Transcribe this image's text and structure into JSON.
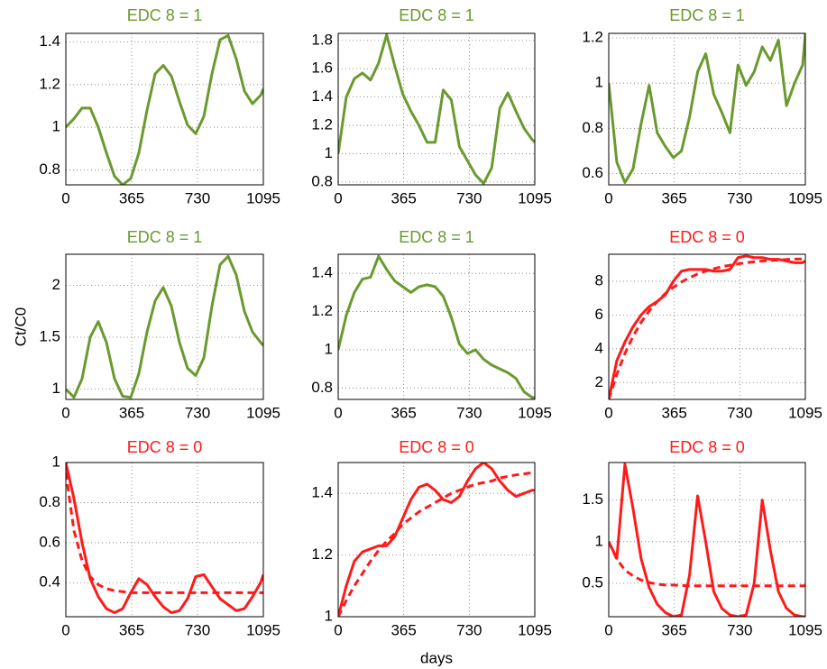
{
  "chart_data": [
    {
      "type": "line",
      "title": "EDC 8 = 1",
      "title_color": "#6a9a2e",
      "x": [
        0,
        45,
        90,
        135,
        180,
        225,
        270,
        315,
        360,
        405,
        450,
        495,
        540,
        585,
        630,
        675,
        720,
        765,
        810,
        855,
        900,
        945,
        990,
        1035,
        1080,
        1095
      ],
      "series": [
        {
          "color": "#6a9a2e",
          "style": "solid",
          "values": [
            1.0,
            1.04,
            1.09,
            1.09,
            1.0,
            0.88,
            0.77,
            0.73,
            0.76,
            0.88,
            1.08,
            1.25,
            1.29,
            1.24,
            1.12,
            1.01,
            0.97,
            1.05,
            1.25,
            1.41,
            1.43,
            1.32,
            1.17,
            1.11,
            1.15,
            1.18
          ]
        }
      ],
      "xlim": [
        0,
        1095
      ],
      "xticks": [
        0,
        365,
        730,
        1095
      ],
      "ylim": [
        0.73,
        1.44
      ],
      "yticks": [
        0.8,
        1,
        1.2,
        1.4
      ],
      "grid": true
    },
    {
      "type": "line",
      "title": "EDC 8 = 1",
      "title_color": "#6a9a2e",
      "x": [
        0,
        45,
        90,
        135,
        180,
        225,
        270,
        315,
        360,
        405,
        450,
        495,
        540,
        585,
        630,
        675,
        720,
        765,
        810,
        855,
        900,
        945,
        990,
        1035,
        1080,
        1095
      ],
      "series": [
        {
          "color": "#6a9a2e",
          "style": "solid",
          "values": [
            1.0,
            1.4,
            1.53,
            1.57,
            1.52,
            1.64,
            1.84,
            1.62,
            1.42,
            1.3,
            1.2,
            1.08,
            1.08,
            1.45,
            1.38,
            1.05,
            0.95,
            0.85,
            0.79,
            0.9,
            1.32,
            1.43,
            1.3,
            1.18,
            1.1,
            1.08
          ]
        }
      ],
      "xlim": [
        0,
        1095
      ],
      "xticks": [
        0,
        365,
        730,
        1095
      ],
      "ylim": [
        0.78,
        1.85
      ],
      "yticks": [
        0.8,
        1,
        1.2,
        1.4,
        1.6,
        1.8
      ],
      "grid": true
    },
    {
      "type": "line",
      "title": "EDC 8 = 1",
      "title_color": "#6a9a2e",
      "x": [
        0,
        45,
        90,
        135,
        180,
        225,
        270,
        315,
        360,
        405,
        450,
        495,
        540,
        585,
        630,
        675,
        720,
        765,
        810,
        855,
        900,
        945,
        990,
        1035,
        1080,
        1095
      ],
      "series": [
        {
          "color": "#6a9a2e",
          "style": "solid",
          "values": [
            1.0,
            0.65,
            0.56,
            0.62,
            0.82,
            0.99,
            0.78,
            0.72,
            0.67,
            0.7,
            0.85,
            1.05,
            1.13,
            0.95,
            0.87,
            0.78,
            1.08,
            0.99,
            1.05,
            1.16,
            1.1,
            1.19,
            0.9,
            1.0,
            1.08,
            1.22
          ]
        }
      ],
      "xlim": [
        0,
        1095
      ],
      "xticks": [
        0,
        365,
        730,
        1095
      ],
      "ylim": [
        0.55,
        1.22
      ],
      "yticks": [
        0.6,
        0.8,
        1,
        1.2
      ],
      "grid": true
    },
    {
      "type": "line",
      "title": "EDC 8 = 1",
      "title_color": "#6a9a2e",
      "ylabel": "Ct/C0",
      "x": [
        0,
        45,
        90,
        135,
        180,
        225,
        270,
        315,
        360,
        405,
        450,
        495,
        540,
        585,
        630,
        675,
        720,
        765,
        810,
        855,
        900,
        945,
        990,
        1035,
        1080,
        1095
      ],
      "series": [
        {
          "color": "#6a9a2e",
          "style": "solid",
          "values": [
            1.0,
            0.92,
            1.1,
            1.5,
            1.65,
            1.45,
            1.1,
            0.93,
            0.92,
            1.15,
            1.55,
            1.85,
            1.98,
            1.8,
            1.45,
            1.2,
            1.13,
            1.3,
            1.8,
            2.2,
            2.28,
            2.1,
            1.75,
            1.55,
            1.45,
            1.42
          ]
        }
      ],
      "xlim": [
        0,
        1095
      ],
      "xticks": [
        0,
        365,
        730,
        1095
      ],
      "ylim": [
        0.9,
        2.3
      ],
      "yticks": [
        1,
        1.5,
        2
      ],
      "grid": true
    },
    {
      "type": "line",
      "title": "EDC 8 = 1",
      "title_color": "#6a9a2e",
      "x": [
        0,
        45,
        90,
        135,
        180,
        225,
        270,
        315,
        360,
        405,
        450,
        495,
        540,
        585,
        630,
        675,
        720,
        765,
        810,
        855,
        900,
        945,
        990,
        1035,
        1080,
        1095
      ],
      "series": [
        {
          "color": "#6a9a2e",
          "style": "solid",
          "values": [
            1.0,
            1.18,
            1.3,
            1.37,
            1.38,
            1.49,
            1.42,
            1.36,
            1.33,
            1.3,
            1.33,
            1.34,
            1.33,
            1.28,
            1.17,
            1.03,
            0.98,
            1.0,
            0.95,
            0.92,
            0.9,
            0.88,
            0.85,
            0.78,
            0.75,
            0.75
          ]
        }
      ],
      "xlim": [
        0,
        1095
      ],
      "xticks": [
        0,
        365,
        730,
        1095
      ],
      "ylim": [
        0.74,
        1.5
      ],
      "yticks": [
        0.8,
        1,
        1.2,
        1.4
      ],
      "grid": true
    },
    {
      "type": "line",
      "title": "EDC 8 = 0",
      "title_color": "#ff1a1a",
      "x": [
        0,
        45,
        90,
        135,
        180,
        225,
        270,
        315,
        360,
        405,
        450,
        495,
        540,
        585,
        630,
        675,
        720,
        765,
        810,
        855,
        900,
        945,
        990,
        1035,
        1080,
        1095
      ],
      "series": [
        {
          "color": "#ff1a1a",
          "style": "solid",
          "values": [
            1,
            3.3,
            4.4,
            5.3,
            6.0,
            6.5,
            6.8,
            7.2,
            8.0,
            8.6,
            8.7,
            8.7,
            8.7,
            8.6,
            8.6,
            8.7,
            9.4,
            9.5,
            9.4,
            9.4,
            9.3,
            9.3,
            9.2,
            9.1,
            9.1,
            9.2
          ]
        },
        {
          "color": "#ff1a1a",
          "style": "dashed",
          "values": [
            1,
            2.49,
            3.72,
            4.73,
            5.56,
            6.24,
            6.8,
            7.27,
            7.64,
            7.96,
            8.21,
            8.43,
            8.6,
            8.74,
            8.86,
            8.95,
            9.03,
            9.1,
            9.15,
            9.2,
            9.23,
            9.26,
            9.29,
            9.31,
            9.32,
            9.33
          ]
        }
      ],
      "xlim": [
        0,
        1095
      ],
      "xticks": [
        0,
        365,
        730,
        1095
      ],
      "ylim": [
        1,
        9.6
      ],
      "yticks": [
        2,
        4,
        6,
        8
      ],
      "grid": true
    },
    {
      "type": "line",
      "title": "EDC 8 = 0",
      "title_color": "#ff1a1a",
      "x": [
        0,
        45,
        90,
        135,
        180,
        225,
        270,
        315,
        360,
        405,
        450,
        495,
        540,
        585,
        630,
        675,
        720,
        765,
        810,
        855,
        900,
        945,
        990,
        1035,
        1080,
        1095
      ],
      "series": [
        {
          "color": "#ff1a1a",
          "style": "solid",
          "values": [
            1,
            0.82,
            0.6,
            0.42,
            0.33,
            0.27,
            0.25,
            0.27,
            0.35,
            0.42,
            0.39,
            0.33,
            0.28,
            0.25,
            0.26,
            0.32,
            0.43,
            0.44,
            0.38,
            0.32,
            0.29,
            0.26,
            0.27,
            0.33,
            0.4,
            0.44
          ]
        },
        {
          "color": "#ff1a1a",
          "style": "dashed",
          "values": [
            0.95,
            0.66,
            0.51,
            0.43,
            0.39,
            0.37,
            0.36,
            0.355,
            0.35,
            0.35,
            0.35,
            0.35,
            0.35,
            0.35,
            0.35,
            0.35,
            0.35,
            0.35,
            0.35,
            0.35,
            0.35,
            0.35,
            0.35,
            0.35,
            0.35,
            0.35
          ]
        }
      ],
      "xlim": [
        0,
        1095
      ],
      "xticks": [
        0,
        365,
        730,
        1095
      ],
      "ylim": [
        0.23,
        1
      ],
      "yticks": [
        0.4,
        0.6,
        0.8,
        1
      ],
      "grid": true
    },
    {
      "type": "line",
      "title": "EDC 8 = 0",
      "title_color": "#ff1a1a",
      "xlabel": "days",
      "x": [
        0,
        45,
        90,
        135,
        180,
        225,
        270,
        315,
        360,
        405,
        450,
        495,
        540,
        585,
        630,
        675,
        720,
        765,
        810,
        855,
        900,
        945,
        990,
        1035,
        1080,
        1095
      ],
      "series": [
        {
          "color": "#ff1a1a",
          "style": "solid",
          "values": [
            1,
            1.1,
            1.18,
            1.21,
            1.22,
            1.23,
            1.23,
            1.26,
            1.32,
            1.38,
            1.42,
            1.43,
            1.41,
            1.38,
            1.37,
            1.39,
            1.44,
            1.48,
            1.5,
            1.48,
            1.44,
            1.41,
            1.39,
            1.4,
            1.41,
            1.41
          ]
        },
        {
          "color": "#ff1a1a",
          "style": "dashed",
          "values": [
            1,
            1.053,
            1.1,
            1.14,
            1.18,
            1.215,
            1.245,
            1.27,
            1.3,
            1.32,
            1.34,
            1.355,
            1.37,
            1.385,
            1.4,
            1.41,
            1.42,
            1.43,
            1.435,
            1.44,
            1.45,
            1.455,
            1.46,
            1.463,
            1.467,
            1.468
          ]
        }
      ],
      "xlim": [
        0,
        1095
      ],
      "xticks": [
        0,
        365,
        730,
        1095
      ],
      "ylim": [
        1,
        1.5
      ],
      "yticks": [
        1,
        1.2,
        1.4
      ],
      "grid": true
    },
    {
      "type": "line",
      "title": "EDC 8 = 0",
      "title_color": "#ff1a1a",
      "x": [
        0,
        45,
        90,
        135,
        180,
        225,
        270,
        315,
        360,
        405,
        450,
        495,
        540,
        585,
        630,
        675,
        720,
        765,
        810,
        855,
        900,
        945,
        990,
        1035,
        1080,
        1095
      ],
      "series": [
        {
          "color": "#ff1a1a",
          "style": "solid",
          "values": [
            1,
            0.8,
            1.93,
            1.4,
            0.8,
            0.45,
            0.25,
            0.15,
            0.1,
            0.12,
            0.6,
            1.55,
            1.0,
            0.4,
            0.2,
            0.12,
            0.1,
            0.12,
            0.5,
            1.5,
            0.9,
            0.4,
            0.2,
            0.12,
            0.1,
            0.1
          ]
        },
        {
          "color": "#ff1a1a",
          "style": "dashed",
          "values": [
            1,
            0.79,
            0.66,
            0.59,
            0.54,
            0.51,
            0.49,
            0.48,
            0.48,
            0.475,
            0.47,
            0.47,
            0.47,
            0.47,
            0.47,
            0.47,
            0.47,
            0.47,
            0.47,
            0.47,
            0.47,
            0.47,
            0.47,
            0.47,
            0.47,
            0.47
          ]
        }
      ],
      "xlim": [
        0,
        1095
      ],
      "xticks": [
        0,
        365,
        730,
        1095
      ],
      "ylim": [
        0.1,
        1.95
      ],
      "yticks": [
        0.5,
        1,
        1.5
      ],
      "grid": true
    }
  ]
}
